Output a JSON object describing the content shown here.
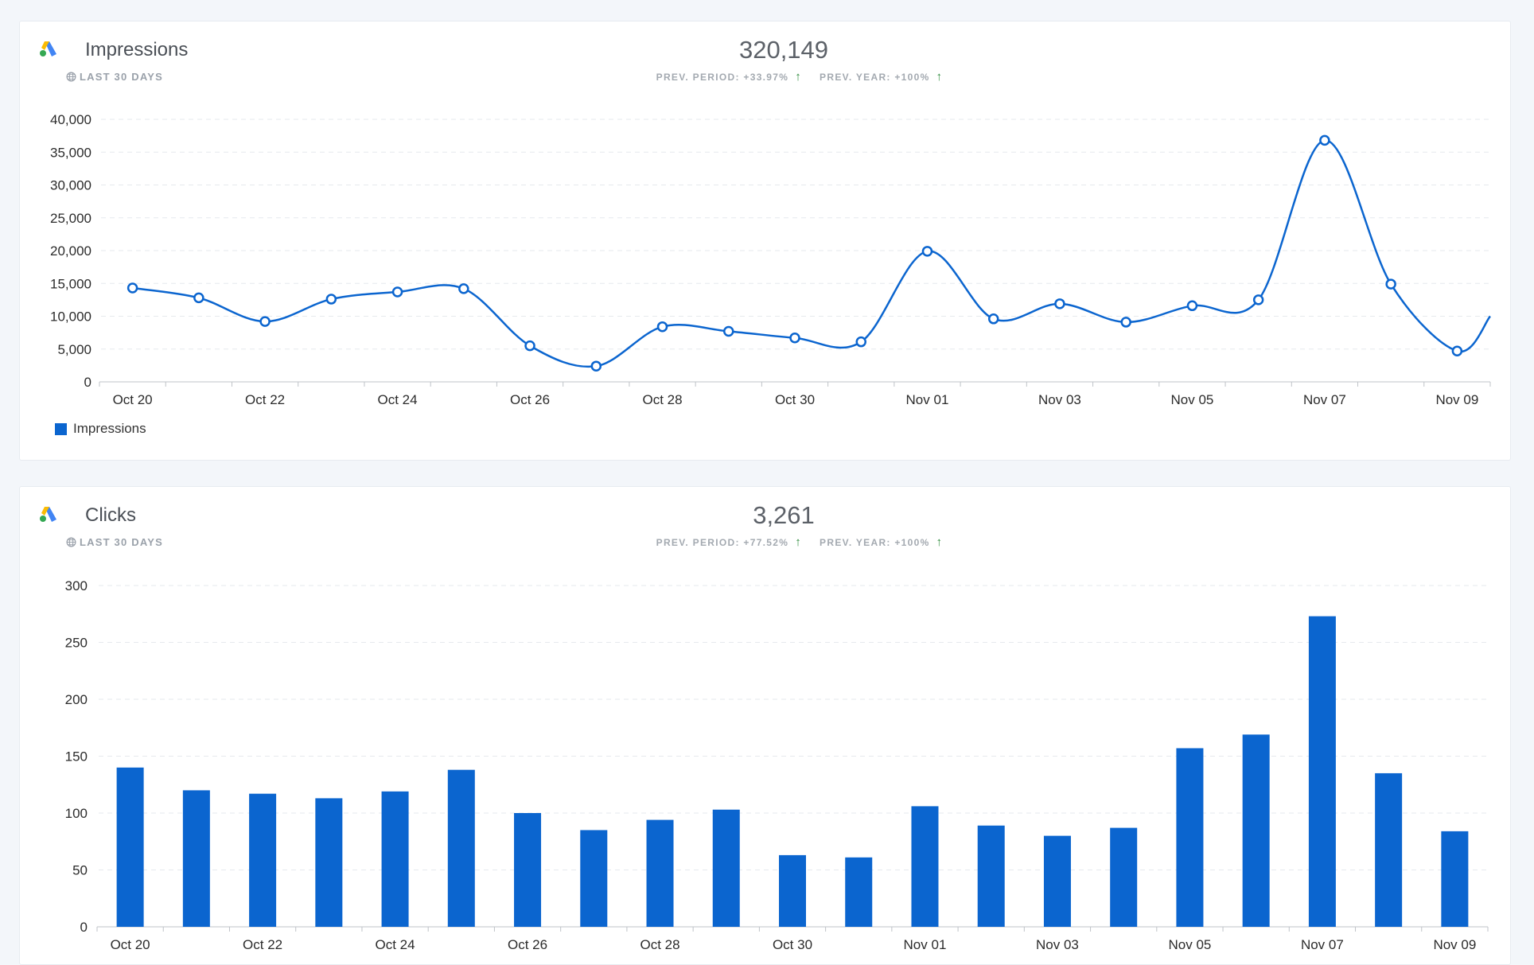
{
  "colors": {
    "series": "#0b65cf",
    "up_arrow": "#2e8b3c",
    "background": "#f3f6fa"
  },
  "cards": [
    {
      "title": "Impressions",
      "period": "LAST 30 DAYS",
      "total": "320,149",
      "prev_period": "PREV. PERIOD: +33.97%",
      "prev_year": "PREV. YEAR: +100%",
      "legend": "Impressions",
      "logo_icon": "google-ads-icon",
      "period_icon": "globe-icon",
      "trend_icon": "arrow-up-icon"
    },
    {
      "title": "Clicks",
      "period": "LAST 30 DAYS",
      "total": "3,261",
      "prev_period": "PREV. PERIOD: +77.52%",
      "prev_year": "PREV. YEAR: +100%",
      "logo_icon": "google-ads-icon",
      "period_icon": "globe-icon",
      "trend_icon": "arrow-up-icon"
    }
  ],
  "chart_data": [
    {
      "type": "line",
      "title": "Impressions",
      "x": [
        "Oct 20",
        "Oct 21",
        "Oct 22",
        "Oct 23",
        "Oct 24",
        "Oct 25",
        "Oct 26",
        "Oct 27",
        "Oct 28",
        "Oct 29",
        "Oct 30",
        "Oct 31",
        "Nov 01",
        "Nov 02",
        "Nov 03",
        "Nov 04",
        "Nov 05",
        "Nov 06",
        "Nov 07",
        "Nov 08",
        "Nov 09"
      ],
      "tick_labels": [
        "Oct 20",
        "Oct 22",
        "Oct 24",
        "Oct 26",
        "Oct 28",
        "Oct 30",
        "Nov 01",
        "Nov 03",
        "Nov 05",
        "Nov 07",
        "Nov 09"
      ],
      "series": [
        {
          "name": "Impressions",
          "values": [
            14300,
            12800,
            9200,
            12600,
            13700,
            14200,
            5500,
            2400,
            8400,
            7700,
            6700,
            6100,
            19900,
            9600,
            11900,
            9100,
            11600,
            12500,
            36800,
            14900,
            4700
          ]
        }
      ],
      "ylim": [
        0,
        40000
      ],
      "yticks": [
        "0",
        "5,000",
        "10,000",
        "15,000",
        "20,000",
        "25,000",
        "30,000",
        "35,000",
        "40,000"
      ],
      "ytick_values": [
        0,
        5000,
        10000,
        15000,
        20000,
        25000,
        30000,
        35000,
        40000
      ],
      "grid": true,
      "smooth": true,
      "legend_position": "bottom-left"
    },
    {
      "type": "bar",
      "title": "Clicks",
      "categories": [
        "Oct 20",
        "Oct 21",
        "Oct 22",
        "Oct 23",
        "Oct 24",
        "Oct 25",
        "Oct 26",
        "Oct 27",
        "Oct 28",
        "Oct 29",
        "Oct 30",
        "Oct 31",
        "Nov 01",
        "Nov 02",
        "Nov 03",
        "Nov 04",
        "Nov 05",
        "Nov 06",
        "Nov 07",
        "Nov 08",
        "Nov 09"
      ],
      "tick_labels": [
        "Oct 20",
        "Oct 22",
        "Oct 24",
        "Oct 26",
        "Oct 28",
        "Oct 30",
        "Nov 01",
        "Nov 03",
        "Nov 05",
        "Nov 07",
        "Nov 09"
      ],
      "values": [
        140,
        120,
        117,
        113,
        119,
        138,
        100,
        85,
        94,
        103,
        63,
        61,
        106,
        89,
        80,
        87,
        157,
        169,
        273,
        135,
        84
      ],
      "ylim": [
        0,
        300
      ],
      "yticks": [
        "0",
        "50",
        "100",
        "150",
        "200",
        "250",
        "300"
      ],
      "ytick_values": [
        0,
        50,
        100,
        150,
        200,
        250,
        300
      ],
      "grid": true
    }
  ]
}
